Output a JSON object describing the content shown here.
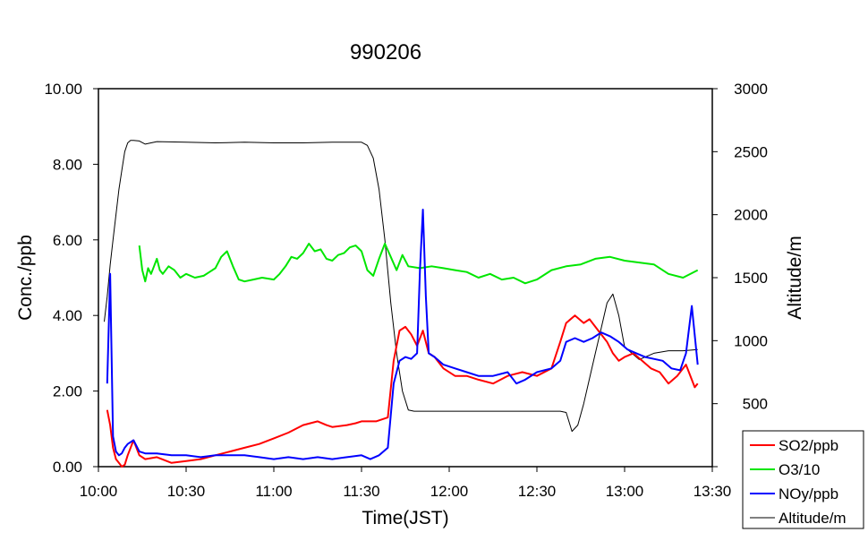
{
  "chart_data": {
    "type": "line",
    "title": "990206",
    "xlabel": "Time(JST)",
    "ylabel_left": "Conc./ppb",
    "ylabel_right": "Altitude/m",
    "x_ticks": [
      "10:00",
      "10:30",
      "11:00",
      "11:30",
      "12:00",
      "12:30",
      "13:00",
      "13:30"
    ],
    "x_unit": "minutes since 10:00",
    "xlim": [
      0,
      210
    ],
    "y_left_ticks": [
      "0.00",
      "2.00",
      "4.00",
      "6.00",
      "8.00",
      "10.00"
    ],
    "ylim_left": [
      0,
      10
    ],
    "y_right_ticks": [
      "0",
      "500",
      "1000",
      "1500",
      "2000",
      "2500",
      "3000"
    ],
    "ylim_right": [
      0,
      3000
    ],
    "grid": false,
    "legend_position": "bottom-right",
    "series": [
      {
        "name": "SO2/ppb",
        "color": "#ff0000",
        "axis": "left",
        "x": [
          3,
          4,
          5,
          6,
          7,
          8,
          9,
          10,
          12,
          14,
          16,
          20,
          25,
          30,
          35,
          40,
          45,
          50,
          55,
          60,
          65,
          70,
          75,
          78,
          80,
          85,
          88,
          90,
          95,
          99,
          101,
          103,
          105,
          107,
          109,
          111,
          113,
          115,
          118,
          122,
          126,
          130,
          135,
          140,
          145,
          150,
          155,
          158,
          160,
          163,
          166,
          168,
          171,
          174,
          176,
          178,
          180,
          183,
          186,
          189,
          192,
          195,
          198,
          201,
          203,
          204,
          205
        ],
        "values": [
          1.5,
          1.1,
          0.5,
          0.2,
          0.1,
          0.0,
          0.05,
          0.3,
          0.7,
          0.3,
          0.2,
          0.25,
          0.1,
          0.15,
          0.2,
          0.3,
          0.4,
          0.5,
          0.6,
          0.75,
          0.9,
          1.1,
          1.2,
          1.1,
          1.05,
          1.1,
          1.15,
          1.2,
          1.2,
          1.3,
          2.8,
          3.6,
          3.7,
          3.5,
          3.2,
          3.6,
          3.0,
          2.9,
          2.6,
          2.4,
          2.4,
          2.3,
          2.2,
          2.4,
          2.5,
          2.4,
          2.6,
          3.3,
          3.8,
          4.0,
          3.8,
          3.9,
          3.6,
          3.3,
          3.0,
          2.8,
          2.9,
          3.0,
          2.8,
          2.6,
          2.5,
          2.2,
          2.4,
          2.7,
          2.3,
          2.1,
          2.2
        ]
      },
      {
        "name": "O3/10",
        "color": "#00e600",
        "axis": "left",
        "x": [
          14,
          15,
          16,
          17,
          18,
          19,
          20,
          21,
          22,
          24,
          26,
          28,
          30,
          33,
          36,
          38,
          40,
          42,
          44,
          46,
          48,
          50,
          53,
          56,
          60,
          62,
          64,
          66,
          68,
          70,
          72,
          74,
          76,
          78,
          80,
          82,
          84,
          86,
          88,
          90,
          92,
          94,
          96,
          98,
          100,
          102,
          104,
          106,
          110,
          114,
          118,
          122,
          126,
          130,
          134,
          138,
          142,
          146,
          150,
          155,
          160,
          165,
          170,
          175,
          180,
          185,
          190,
          195,
          200,
          205
        ],
        "values": [
          5.85,
          5.2,
          4.9,
          5.25,
          5.1,
          5.3,
          5.5,
          5.2,
          5.1,
          5.3,
          5.2,
          5.0,
          5.1,
          5.0,
          5.05,
          5.15,
          5.25,
          5.55,
          5.7,
          5.3,
          4.95,
          4.9,
          4.95,
          5.0,
          4.95,
          5.1,
          5.3,
          5.55,
          5.5,
          5.65,
          5.9,
          5.7,
          5.75,
          5.5,
          5.45,
          5.6,
          5.65,
          5.8,
          5.85,
          5.7,
          5.2,
          5.05,
          5.5,
          5.9,
          5.55,
          5.2,
          5.6,
          5.3,
          5.25,
          5.3,
          5.25,
          5.2,
          5.15,
          5.0,
          5.1,
          4.95,
          5.0,
          4.85,
          4.95,
          5.2,
          5.3,
          5.35,
          5.5,
          5.55,
          5.45,
          5.4,
          5.35,
          5.1,
          5.0,
          5.2
        ]
      },
      {
        "name": "NOy/ppb",
        "color": "#0000ff",
        "axis": "left",
        "x": [
          3,
          4,
          5,
          6,
          7,
          8,
          9,
          10,
          12,
          14,
          16,
          20,
          25,
          30,
          35,
          40,
          45,
          50,
          55,
          60,
          65,
          70,
          75,
          80,
          85,
          90,
          93,
          96,
          99,
          101,
          103,
          105,
          107,
          109,
          110,
          111,
          112,
          113,
          115,
          118,
          122,
          126,
          130,
          135,
          140,
          143,
          146,
          150,
          155,
          158,
          160,
          163,
          166,
          169,
          172,
          175,
          178,
          181,
          184,
          187,
          190,
          193,
          196,
          199,
          201,
          203,
          205
        ],
        "values": [
          2.2,
          5.1,
          0.8,
          0.4,
          0.3,
          0.35,
          0.5,
          0.6,
          0.7,
          0.4,
          0.35,
          0.35,
          0.3,
          0.3,
          0.25,
          0.3,
          0.3,
          0.3,
          0.25,
          0.2,
          0.25,
          0.2,
          0.25,
          0.2,
          0.25,
          0.3,
          0.2,
          0.3,
          0.5,
          2.2,
          2.8,
          2.9,
          2.85,
          3.0,
          5.2,
          6.8,
          4.5,
          3.0,
          2.9,
          2.7,
          2.6,
          2.5,
          2.4,
          2.4,
          2.5,
          2.2,
          2.3,
          2.5,
          2.6,
          2.8,
          3.3,
          3.4,
          3.3,
          3.4,
          3.55,
          3.45,
          3.3,
          3.1,
          3.0,
          2.9,
          2.85,
          2.8,
          2.6,
          2.55,
          3.0,
          4.25,
          2.7
        ]
      },
      {
        "name": "Altitude/m",
        "color": "#000000",
        "axis": "right",
        "x": [
          2,
          3,
          4,
          5,
          6,
          7,
          8,
          9,
          10,
          11,
          12,
          14,
          16,
          20,
          30,
          40,
          50,
          60,
          70,
          80,
          90,
          92,
          94,
          96,
          98,
          100,
          102,
          104,
          106,
          108,
          110,
          115,
          120,
          130,
          140,
          150,
          155,
          158,
          160,
          162,
          164,
          166,
          168,
          170,
          172,
          174,
          176,
          178,
          180,
          185,
          190,
          195,
          200,
          205
        ],
        "values": [
          1150,
          1350,
          1600,
          1800,
          2000,
          2200,
          2350,
          2500,
          2570,
          2590,
          2590,
          2585,
          2560,
          2580,
          2575,
          2570,
          2575,
          2570,
          2570,
          2575,
          2575,
          2550,
          2450,
          2200,
          1800,
          1300,
          900,
          600,
          450,
          440,
          440,
          440,
          440,
          440,
          440,
          440,
          440,
          440,
          430,
          280,
          330,
          500,
          700,
          900,
          1100,
          1300,
          1370,
          1200,
          950,
          850,
          900,
          920,
          920,
          930
        ]
      }
    ]
  }
}
